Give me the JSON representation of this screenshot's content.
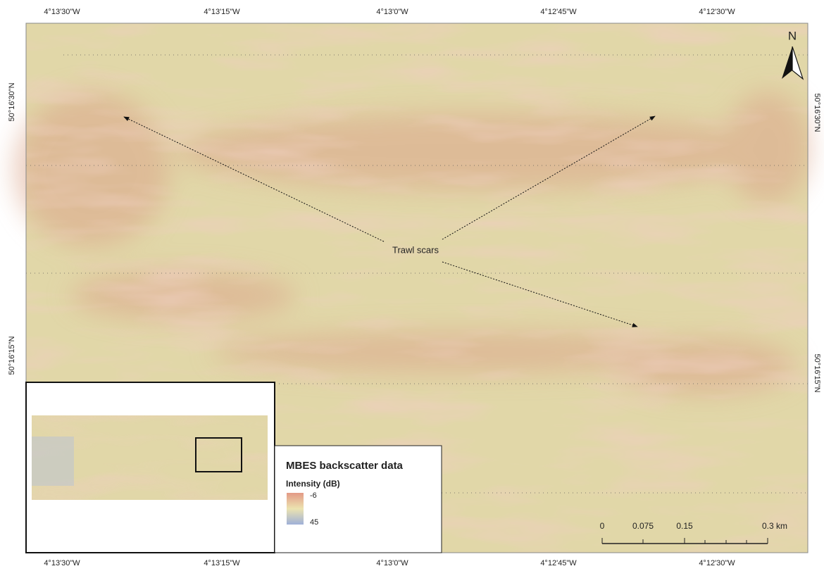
{
  "map": {
    "top_labels": [
      "4°13'30\"W",
      "4°13'15\"W",
      "4°13'0\"W",
      "4°12'45\"W",
      "4°12'30\"W"
    ],
    "bottom_labels": [
      "4°13'30\"W",
      "4°13'15\"W",
      "4°13'0\"W",
      "4°12'45\"W",
      "4°12'30\"W"
    ],
    "left_labels": [
      "50°16'30\"N",
      "50°16'15\"N"
    ],
    "right_labels": [
      "50°16'30\"N",
      "50°16'15\"N"
    ],
    "north": "N",
    "annotation": "Trawl scars",
    "legend": {
      "title": "MBES backscatter data",
      "subtitle": "Intensity (dB)",
      "high": "-6",
      "low": "45"
    },
    "scale_bar": [
      "0",
      "0.075",
      "0.15",
      "0.3 km"
    ]
  }
}
